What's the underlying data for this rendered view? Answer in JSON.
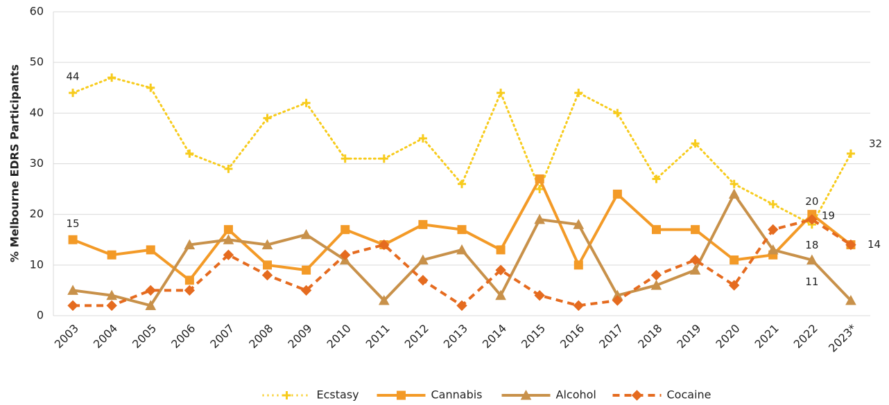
{
  "chart_data": {
    "type": "line",
    "y_label": "% Melbourne EDRS Participants",
    "categories": [
      "2003",
      "2004",
      "2005",
      "2006",
      "2007",
      "2008",
      "2009",
      "2010",
      "2011",
      "2012",
      "2013",
      "2014",
      "2015",
      "2016",
      "2017",
      "2018",
      "2019",
      "2020",
      "2021",
      "2022",
      "2023*"
    ],
    "series": [
      {
        "name": "Ecstasy",
        "color": "#f7cb1c",
        "dash": "dotted",
        "marker": "plus",
        "labeled": [
          0,
          19,
          20
        ],
        "values": [
          44,
          47,
          45,
          32,
          29,
          39,
          42,
          31,
          31,
          35,
          26,
          44,
          25,
          44,
          40,
          27,
          34,
          26,
          22,
          18,
          32
        ]
      },
      {
        "name": "Cannabis",
        "color": "#f39a27",
        "dash": "solid",
        "marker": "square",
        "labeled": [
          0,
          19,
          20
        ],
        "values": [
          15,
          12,
          13,
          7,
          17,
          10,
          9,
          17,
          14,
          18,
          17,
          13,
          27,
          10,
          24,
          17,
          17,
          11,
          12,
          20,
          14
        ]
      },
      {
        "name": "Alcohol",
        "color": "#c8914a",
        "dash": "solid",
        "marker": "triangle",
        "labeled": [
          19
        ],
        "values": [
          5,
          4,
          2,
          14,
          15,
          14,
          16,
          11,
          3,
          11,
          13,
          4,
          19,
          18,
          4,
          6,
          9,
          24,
          13,
          11,
          3
        ]
      },
      {
        "name": "Cocaine",
        "color": "#e56b1f",
        "dash": "dashed",
        "marker": "diamond",
        "labeled": [
          19
        ],
        "values": [
          2,
          2,
          5,
          5,
          12,
          8,
          5,
          12,
          14,
          7,
          2,
          9,
          4,
          2,
          3,
          8,
          11,
          6,
          17,
          19,
          14
        ]
      }
    ],
    "ylim": [
      0,
      60
    ],
    "yticks": [
      0,
      10,
      20,
      30,
      40,
      50,
      60
    ],
    "grid": true,
    "legend": "bottom"
  }
}
